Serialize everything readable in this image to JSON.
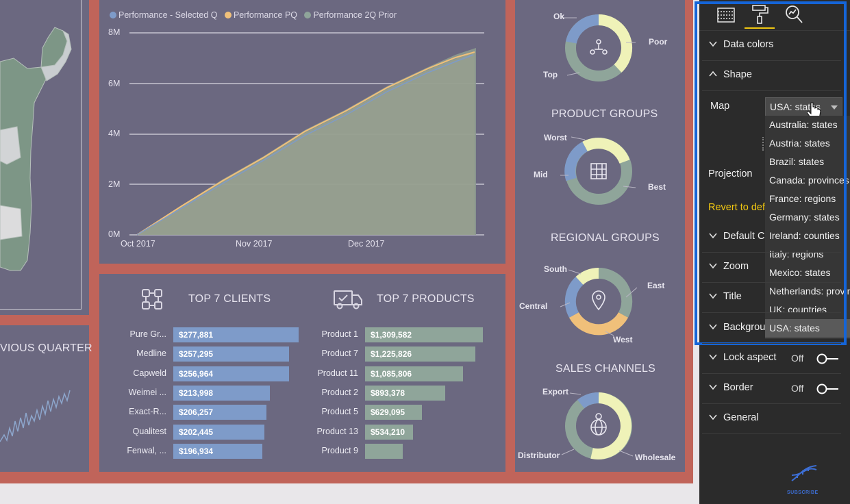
{
  "map_panel": {
    "title_partial": "VIOUS QUARTER"
  },
  "perf_chart": {
    "legend": [
      {
        "name": "Performance - Selected Q",
        "color": "#7e9bc9"
      },
      {
        "name": "Performance PQ",
        "color": "#f0c07a"
      },
      {
        "name": "Performance 2Q Prior",
        "color": "#8fa59a"
      }
    ],
    "y_ticks": [
      "8M",
      "6M",
      "4M",
      "2M",
      "0M"
    ],
    "x_ticks": [
      "Oct 2017",
      "Nov 2017",
      "Dec 2017"
    ]
  },
  "donuts": {
    "customer_labels": [
      "Ok",
      "Poor",
      "Top"
    ],
    "product_groups": {
      "title": "PRODUCT GROUPS",
      "labels": [
        "Worst",
        "Mid",
        "Best"
      ]
    },
    "regional_groups": {
      "title": "REGIONAL GROUPS",
      "labels": [
        "South",
        "East",
        "Central",
        "West"
      ]
    },
    "sales_channels": {
      "title": "SALES CHANNELS",
      "labels": [
        "Export",
        "Distributor",
        "Wholesale"
      ]
    }
  },
  "top_clients": {
    "title": "TOP 7 CLIENTS",
    "rows": [
      {
        "name": "Pure Gr...",
        "value": "$277,881"
      },
      {
        "name": "Medline",
        "value": "$257,295"
      },
      {
        "name": "Capweld",
        "value": "$256,964"
      },
      {
        "name": "Weimei ...",
        "value": "$213,998"
      },
      {
        "name": "Exact-R...",
        "value": "$206,257"
      },
      {
        "name": "Qualitest",
        "value": "$202,445"
      },
      {
        "name": "Fenwal, ...",
        "value": "$196,934"
      }
    ]
  },
  "top_products": {
    "title": "TOP 7 PRODUCTS",
    "rows": [
      {
        "name": "Product 1",
        "value": "$1,309,582"
      },
      {
        "name": "Product 7",
        "value": "$1,225,826"
      },
      {
        "name": "Product 11",
        "value": "$1,085,806"
      },
      {
        "name": "Product 2",
        "value": "$893,378"
      },
      {
        "name": "Product 5",
        "value": "$629,095"
      },
      {
        "name": "Product 13",
        "value": "$534,210"
      },
      {
        "name": "Product 9",
        "value": ""
      }
    ]
  },
  "format_pane": {
    "sections": {
      "data_colors": "Data colors",
      "shape": "Shape",
      "default_color": "Default C",
      "zoom": "Zoom",
      "title": "Title",
      "background": "Backgrou",
      "lock_aspect": "Lock aspect",
      "border": "Border",
      "general": "General"
    },
    "map_label": "Map",
    "map_value": "USA: states",
    "projection_label": "Projection",
    "revert_label": "Revert to def",
    "lock_aspect_state": "Off",
    "border_state": "Off",
    "accent_color": "#f2c811",
    "highlight_color": "#1565d8"
  },
  "map_dropdown": {
    "options": [
      "Australia: states",
      "Austria: states",
      "Brazil: states",
      "Canada: provinces",
      "France: regions",
      "Germany: states",
      "Ireland: counties",
      "Italy: regions",
      "Mexico: states",
      "Netherlands: provinces",
      "UK: countries",
      "USA: states"
    ],
    "selected_index": 11
  },
  "watermark": {
    "text": "SUBSCRIBE"
  }
}
